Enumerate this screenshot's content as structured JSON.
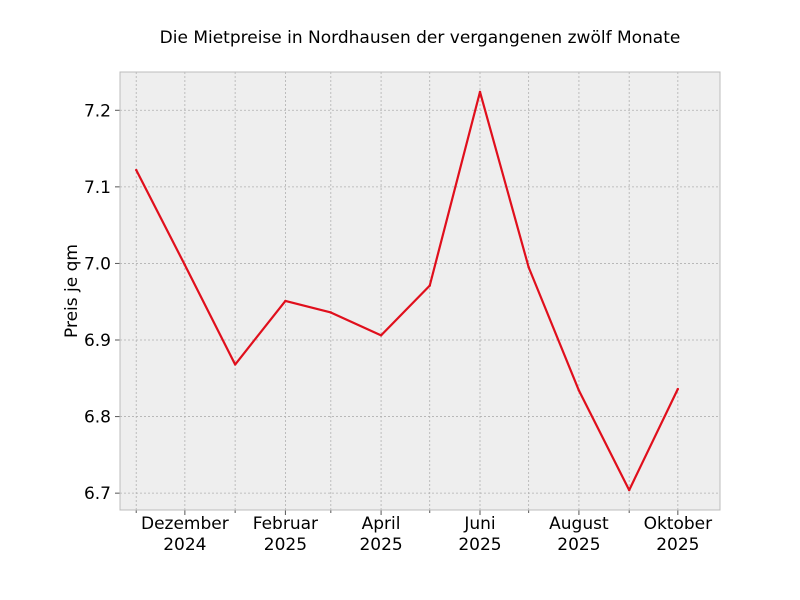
{
  "chart_data": {
    "type": "line",
    "title": "Die Mietpreise in Nordhausen der vergangenen zwölf Monate",
    "xlabel": "",
    "ylabel": "Preis je qm",
    "x": [
      "2024-11",
      "2024-12",
      "2025-01",
      "2025-02",
      "2025-03",
      "2025-04",
      "2025-05",
      "2025-06",
      "2025-07",
      "2025-08",
      "2025-09",
      "2025-10"
    ],
    "series": [
      {
        "values": [
          7.122,
          6.998,
          6.868,
          6.951,
          6.936,
          6.906,
          6.971,
          7.224,
          6.995,
          6.834,
          6.704,
          6.836
        ]
      }
    ],
    "x_ticks": [
      {
        "x": "2024-12",
        "label_line1": "Dezember",
        "label_line2": "2024"
      },
      {
        "x": "2025-02",
        "label_line1": "Februar",
        "label_line2": "2025"
      },
      {
        "x": "2025-04",
        "label_line1": "April",
        "label_line2": "2025"
      },
      {
        "x": "2025-06",
        "label_line1": "Juni",
        "label_line2": "2025"
      },
      {
        "x": "2025-08",
        "label_line1": "August",
        "label_line2": "2025"
      },
      {
        "x": "2025-10",
        "label_line1": "Oktober",
        "label_line2": "2025"
      }
    ],
    "y_ticks": [
      6.7,
      6.8,
      6.9,
      7.0,
      7.1,
      7.2
    ],
    "ylim": [
      6.678,
      7.25
    ],
    "xlim": [
      "2024-10-22",
      "2025-10-27"
    ],
    "grid": true,
    "colors": {
      "line": "#e00f1c",
      "plot_background": "#eeeeee",
      "grid": "#b0b0b0",
      "frame": "#bcbcbc"
    }
  }
}
